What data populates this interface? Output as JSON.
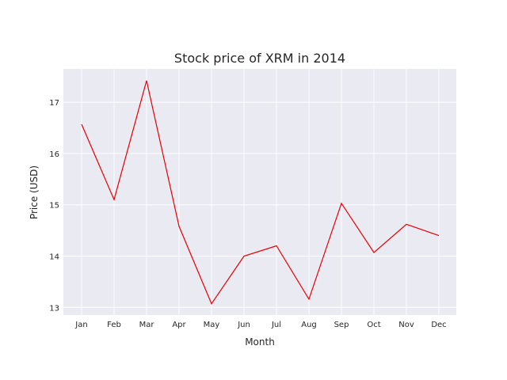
{
  "chart_data": {
    "type": "line",
    "title": "Stock price of XRM in 2014",
    "xlabel": "Month",
    "ylabel": "Price (USD)",
    "categories": [
      "Jan",
      "Feb",
      "Mar",
      "Apr",
      "May",
      "Jun",
      "Jul",
      "Aug",
      "Sep",
      "Oct",
      "Nov",
      "Dec"
    ],
    "series": [
      {
        "values": [
          16.57,
          15.1,
          17.42,
          14.58,
          13.07,
          14.0,
          14.2,
          13.16,
          15.03,
          14.07,
          14.62,
          14.4
        ],
        "color": "#e60000"
      }
    ],
    "yticks": [
      13,
      14,
      15,
      16,
      17
    ],
    "ylim": [
      12.85,
      17.65
    ],
    "grid": true,
    "plot_background": "#eaeaf2",
    "grid_color": "#ffffff"
  }
}
